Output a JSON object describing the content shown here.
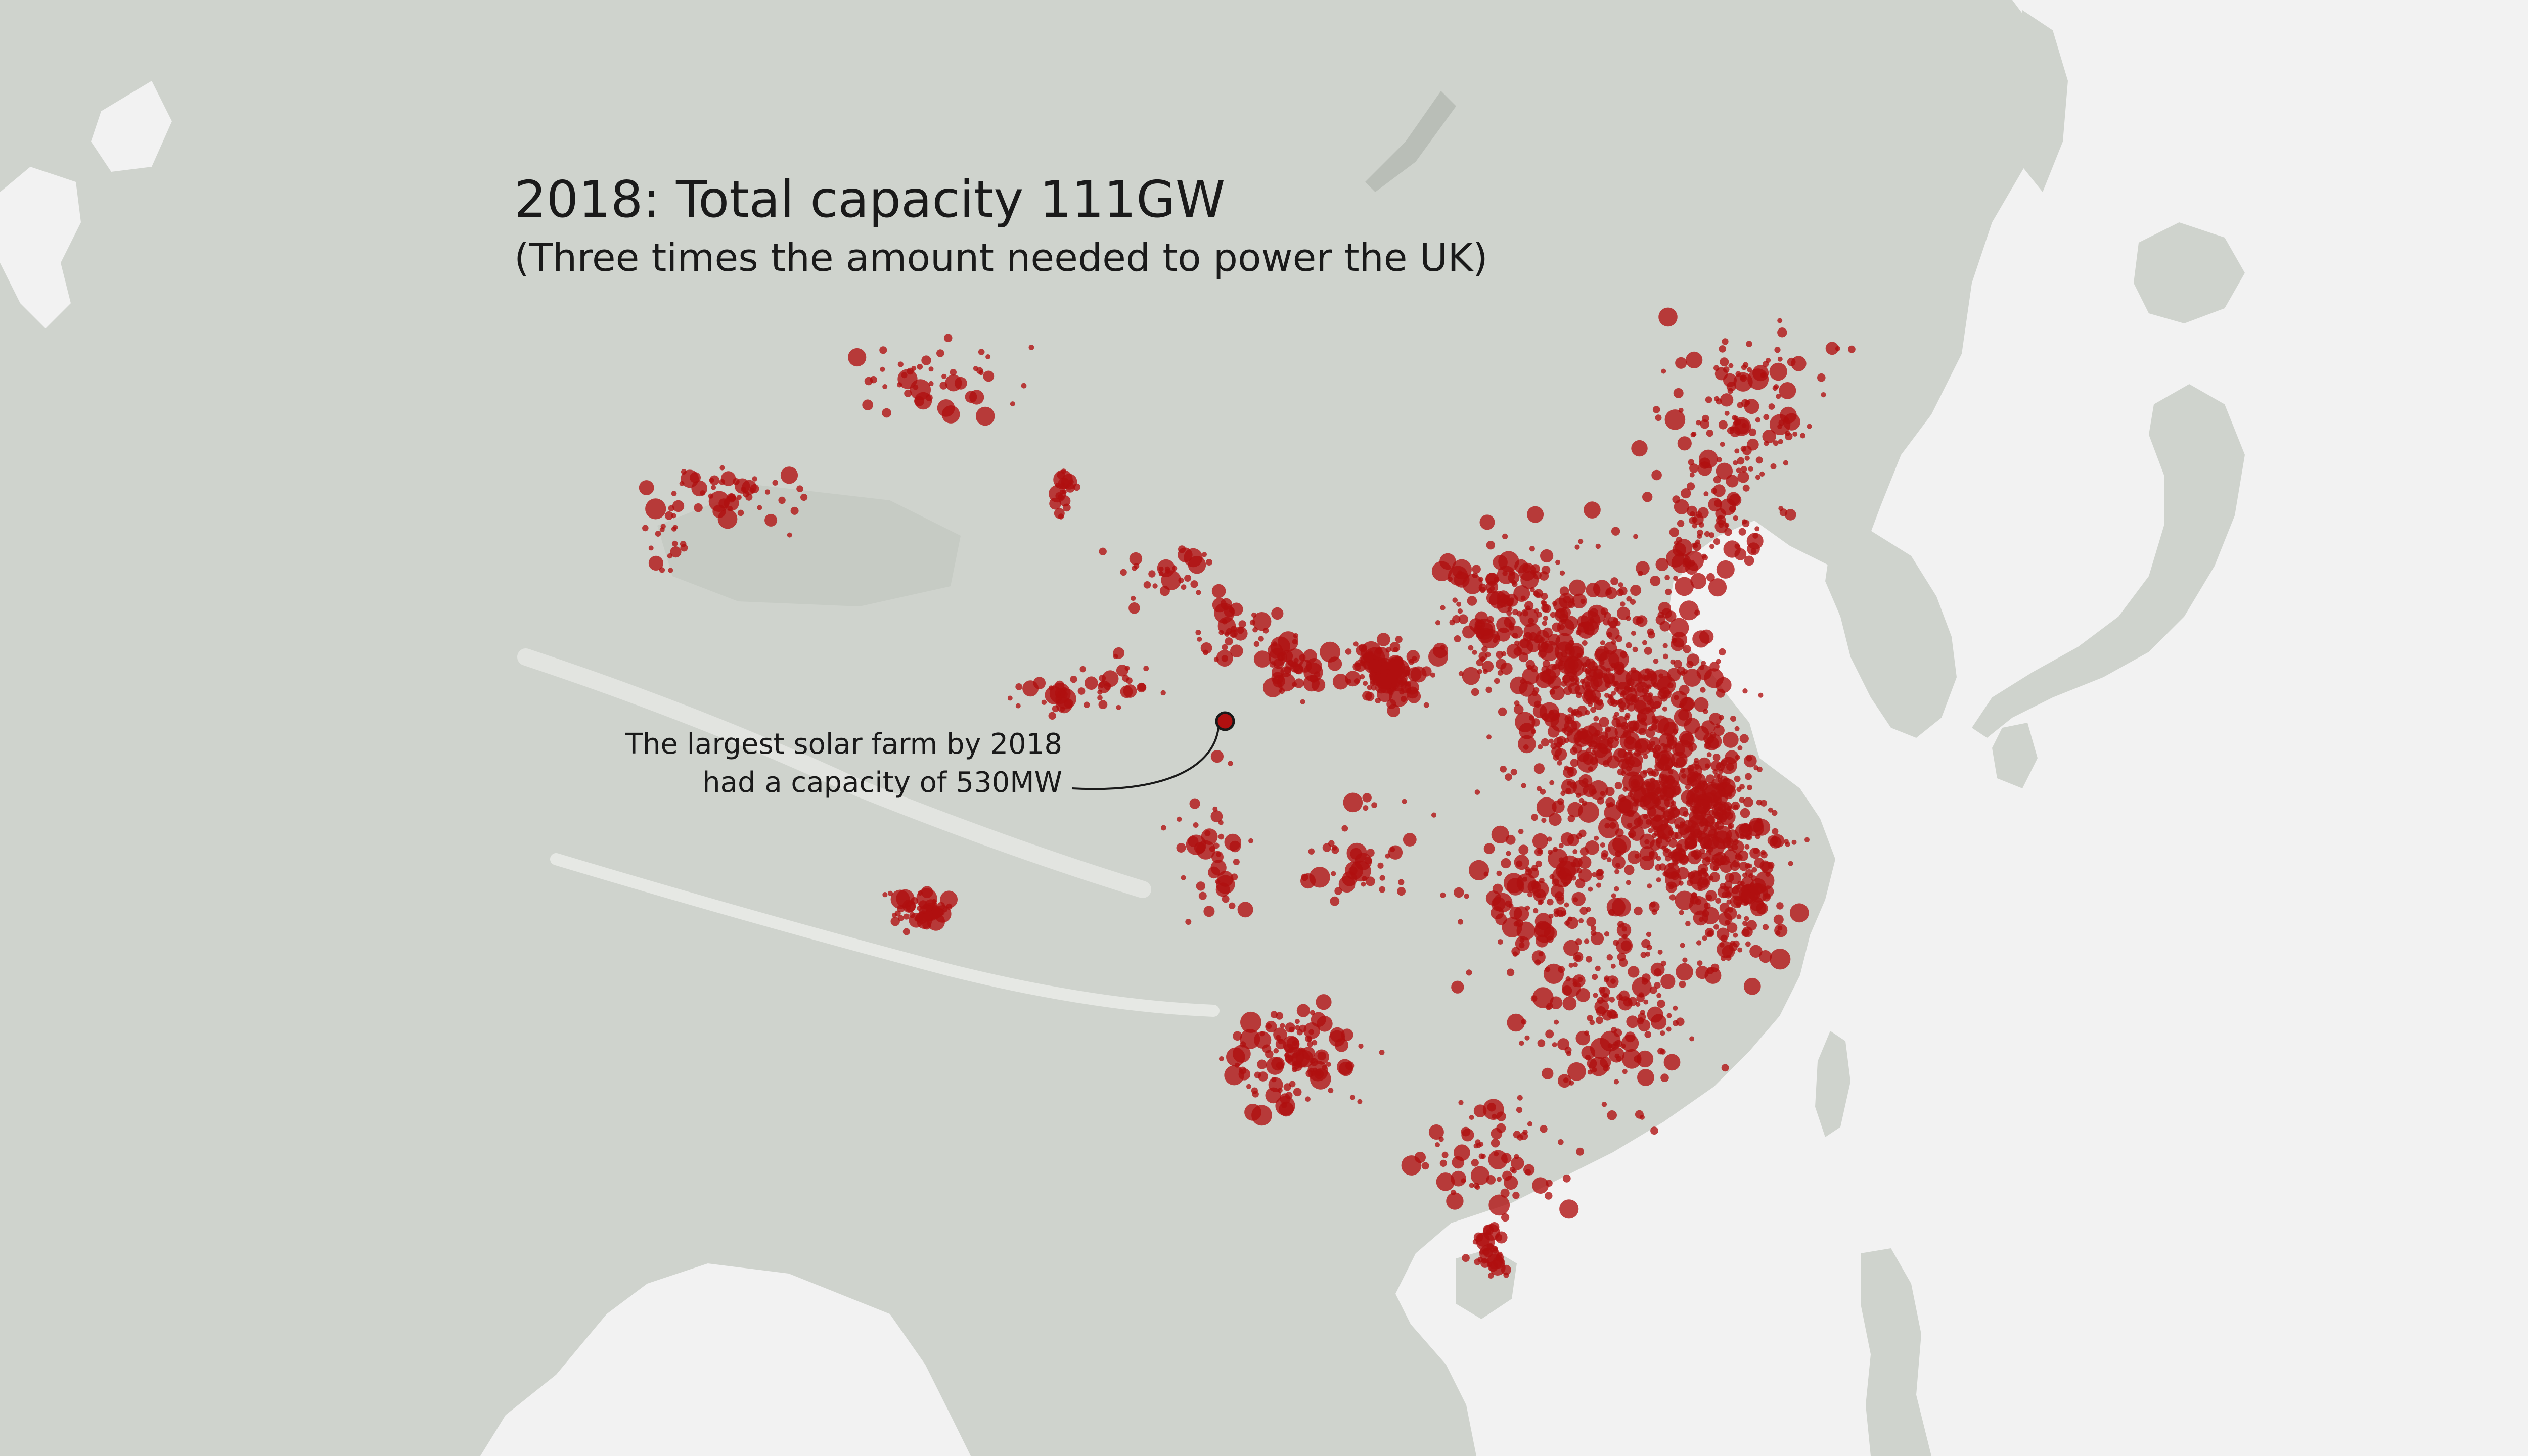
{
  "title": "2018: Total capacity 111GW",
  "subtitle": "(Three times the amount needed to power the UK)",
  "annotation": {
    "line1": "The largest solar farm by 2018",
    "line2": "had a capacity of 530MW"
  },
  "colors": {
    "ocean": "#f2f2f2",
    "land": "#cfd3cd",
    "land_shade": "#c3c8c1",
    "dot": "#b01010",
    "text": "#1a1a1a"
  },
  "legend": [],
  "map": {
    "type": "dot-density",
    "marker": "solar farm",
    "highlight": "largest solar farm"
  }
}
